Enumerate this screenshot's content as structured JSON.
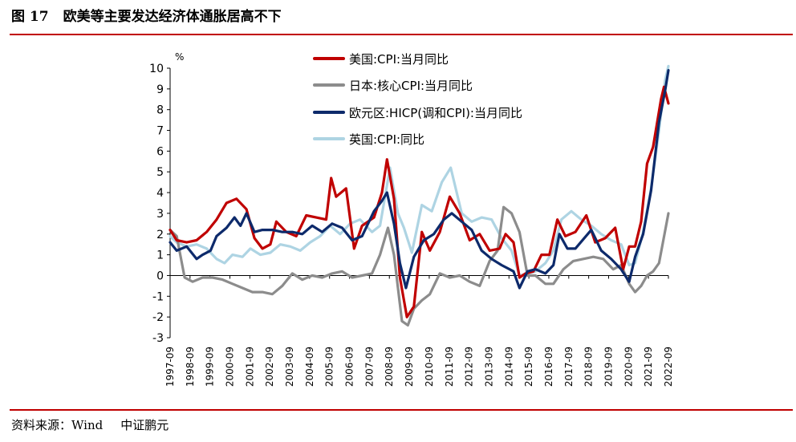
{
  "header": {
    "figure_number": "图 17",
    "figure_title": "欧美等主要发达经济体通胀居高不下"
  },
  "footer": {
    "source": "资料来源：Wind",
    "org": "中证鹏元"
  },
  "colors": {
    "rule": "#c00000",
    "us_cpi": "#c00000",
    "japan_core_cpi": "#8c8c8c",
    "eurozone_hicp": "#0d2a6b",
    "uk_cpi": "#aed4e3"
  },
  "chart_data": {
    "type": "line",
    "title": "",
    "xlabel": "",
    "ylabel": "%",
    "ylim": [
      -3,
      10
    ],
    "yticks": [
      "10",
      "9",
      "8",
      "7",
      "6",
      "5",
      "4",
      "3",
      "2",
      "1",
      "0",
      "-1",
      "-2",
      "-3"
    ],
    "ytick_values": [
      10,
      9,
      8,
      7,
      6,
      5,
      4,
      3,
      2,
      1,
      0,
      -1,
      -2,
      -3
    ],
    "xticks": [
      "1997-09",
      "1998-09",
      "1999-09",
      "2000-09",
      "2001-09",
      "2002-09",
      "2003-09",
      "2004-09",
      "2005-09",
      "2006-09",
      "2007-09",
      "2008-09",
      "2009-09",
      "2010-09",
      "2011-09",
      "2012-09",
      "2013-09",
      "2014-09",
      "2015-09",
      "2016-09",
      "2017-09",
      "2018-09",
      "2019-09",
      "2020-09",
      "2021-09",
      "2022-09"
    ],
    "xrange": [
      1997.67,
      2022.67
    ],
    "legend_position": "top",
    "series": [
      {
        "name": "美国:CPI:当月同比",
        "color": "#c00000",
        "x": [
          1997.67,
          1998.0,
          1998.5,
          1999.0,
          1999.5,
          2000.0,
          2000.5,
          2001.0,
          2001.5,
          2001.9,
          2002.3,
          2002.7,
          2003.0,
          2003.5,
          2004.0,
          2004.5,
          2005.0,
          2005.5,
          2005.75,
          2006.0,
          2006.5,
          2006.9,
          2007.3,
          2007.9,
          2008.3,
          2008.55,
          2008.9,
          2009.2,
          2009.55,
          2009.9,
          2010.3,
          2010.7,
          2011.2,
          2011.7,
          2012.2,
          2012.7,
          2013.2,
          2013.7,
          2014.2,
          2014.5,
          2014.9,
          2015.2,
          2015.5,
          2015.9,
          2016.3,
          2016.7,
          2017.1,
          2017.5,
          2018.0,
          2018.55,
          2019.0,
          2019.5,
          2020.0,
          2020.4,
          2020.7,
          2021.0,
          2021.3,
          2021.6,
          2021.9,
          2022.3,
          2022.45,
          2022.67
        ],
        "values": [
          2.2,
          1.7,
          1.6,
          1.7,
          2.1,
          2.7,
          3.5,
          3.7,
          3.2,
          1.8,
          1.3,
          1.5,
          2.6,
          2.1,
          1.9,
          2.9,
          2.8,
          2.7,
          4.7,
          3.8,
          4.2,
          1.3,
          2.4,
          2.8,
          4.0,
          5.6,
          3.7,
          -0.1,
          -2.0,
          -1.5,
          2.1,
          1.2,
          2.1,
          3.8,
          3.0,
          1.7,
          2.0,
          1.2,
          1.3,
          2.0,
          1.6,
          -0.1,
          0.1,
          0.2,
          1.0,
          1.0,
          2.7,
          1.9,
          2.1,
          2.9,
          1.6,
          1.8,
          2.3,
          0.3,
          1.4,
          1.4,
          2.6,
          5.4,
          6.2,
          8.5,
          9.1,
          8.3
        ]
      },
      {
        "name": "日本:核心CPI:当月同比",
        "color": "#8c8c8c",
        "x": [
          1997.67,
          1998.0,
          1998.4,
          1998.8,
          1999.3,
          1999.8,
          2000.3,
          2000.8,
          2001.3,
          2001.8,
          2002.3,
          2002.8,
          2003.3,
          2003.8,
          2004.3,
          2004.8,
          2005.3,
          2005.8,
          2006.3,
          2006.8,
          2007.3,
          2007.8,
          2008.2,
          2008.6,
          2008.9,
          2009.3,
          2009.6,
          2009.9,
          2010.3,
          2010.7,
          2011.2,
          2011.7,
          2012.2,
          2012.7,
          2013.2,
          2013.7,
          2014.1,
          2014.4,
          2014.8,
          2015.2,
          2015.6,
          2016.0,
          2016.5,
          2016.9,
          2017.4,
          2017.9,
          2018.4,
          2018.9,
          2019.4,
          2019.9,
          2020.3,
          2020.7,
          2021.0,
          2021.3,
          2021.6,
          2021.9,
          2022.2,
          2022.67
        ],
        "values": [
          2.2,
          1.9,
          -0.1,
          -0.3,
          -0.1,
          -0.1,
          -0.2,
          -0.4,
          -0.6,
          -0.8,
          -0.8,
          -0.9,
          -0.5,
          0.1,
          -0.2,
          0.0,
          -0.1,
          0.1,
          0.2,
          -0.1,
          0.0,
          0.1,
          1.0,
          2.3,
          1.0,
          -2.2,
          -2.4,
          -1.6,
          -1.2,
          -0.9,
          0.1,
          -0.1,
          0.0,
          -0.3,
          -0.5,
          0.7,
          1.2,
          3.3,
          3.0,
          2.1,
          0.0,
          0.0,
          -0.4,
          -0.4,
          0.3,
          0.7,
          0.8,
          0.9,
          0.8,
          0.3,
          0.5,
          -0.4,
          -0.8,
          -0.5,
          0.0,
          0.2,
          0.6,
          3.0
        ]
      },
      {
        "name": "欧元区:HICP(调和CPI):当月同比",
        "color": "#0d2a6b",
        "x": [
          1997.67,
          1998.0,
          1998.5,
          1999.0,
          1999.3,
          1999.7,
          2000.0,
          2000.5,
          2000.9,
          2001.2,
          2001.5,
          2001.9,
          2002.3,
          2002.8,
          2003.3,
          2003.8,
          2004.3,
          2004.8,
          2005.3,
          2005.8,
          2006.3,
          2006.8,
          2007.3,
          2007.9,
          2008.3,
          2008.55,
          2008.9,
          2009.2,
          2009.5,
          2009.9,
          2010.4,
          2010.9,
          2011.4,
          2011.8,
          2012.3,
          2012.8,
          2013.3,
          2013.8,
          2014.3,
          2014.9,
          2015.2,
          2015.6,
          2016.0,
          2016.5,
          2016.9,
          2017.2,
          2017.6,
          2018.0,
          2018.8,
          2019.3,
          2019.8,
          2020.3,
          2020.7,
          2021.0,
          2021.4,
          2021.8,
          2022.2,
          2022.5,
          2022.67
        ],
        "values": [
          1.6,
          1.2,
          1.4,
          0.8,
          1.0,
          1.2,
          1.9,
          2.3,
          2.8,
          2.4,
          3.0,
          2.1,
          2.2,
          2.2,
          2.1,
          2.1,
          2.0,
          2.4,
          2.1,
          2.5,
          2.3,
          1.7,
          1.9,
          3.1,
          3.6,
          4.0,
          2.5,
          0.6,
          -0.6,
          0.9,
          1.7,
          2.0,
          2.7,
          3.0,
          2.6,
          2.2,
          1.2,
          0.8,
          0.5,
          0.2,
          -0.6,
          0.2,
          0.3,
          0.1,
          0.5,
          2.0,
          1.3,
          1.3,
          2.2,
          1.2,
          0.8,
          0.3,
          -0.3,
          0.9,
          2.0,
          4.1,
          7.4,
          8.9,
          9.9
        ]
      },
      {
        "name": "英国:CPI:同比",
        "color": "#aed4e3",
        "x": [
          1997.67,
          1998.0,
          1998.5,
          1999.0,
          1999.5,
          2000.0,
          2000.4,
          2000.8,
          2001.3,
          2001.7,
          2002.2,
          2002.7,
          2003.2,
          2003.7,
          2004.2,
          2004.7,
          2005.2,
          2005.7,
          2006.2,
          2006.7,
          2007.2,
          2007.8,
          2008.2,
          2008.7,
          2009.1,
          2009.4,
          2009.8,
          2010.3,
          2010.8,
          2011.3,
          2011.75,
          2012.3,
          2012.8,
          2013.3,
          2013.8,
          2014.3,
          2014.8,
          2015.2,
          2015.6,
          2016.0,
          2016.5,
          2016.9,
          2017.3,
          2017.8,
          2018.3,
          2018.8,
          2019.3,
          2019.8,
          2020.3,
          2020.7,
          2021.0,
          2021.4,
          2021.8,
          2022.2,
          2022.5,
          2022.67
        ],
        "values": [
          1.9,
          1.6,
          1.4,
          1.5,
          1.3,
          0.8,
          0.6,
          1.0,
          0.9,
          1.3,
          1.0,
          1.1,
          1.5,
          1.4,
          1.2,
          1.6,
          1.9,
          2.4,
          2.0,
          2.5,
          2.7,
          2.1,
          2.4,
          5.2,
          3.0,
          2.3,
          1.1,
          3.4,
          3.1,
          4.5,
          5.2,
          3.0,
          2.6,
          2.8,
          2.7,
          1.8,
          1.2,
          0.0,
          0.1,
          0.2,
          0.6,
          1.2,
          2.7,
          3.1,
          2.7,
          2.4,
          2.0,
          1.7,
          1.5,
          0.5,
          0.6,
          2.1,
          4.2,
          7.0,
          9.4,
          10.1
        ]
      }
    ]
  }
}
